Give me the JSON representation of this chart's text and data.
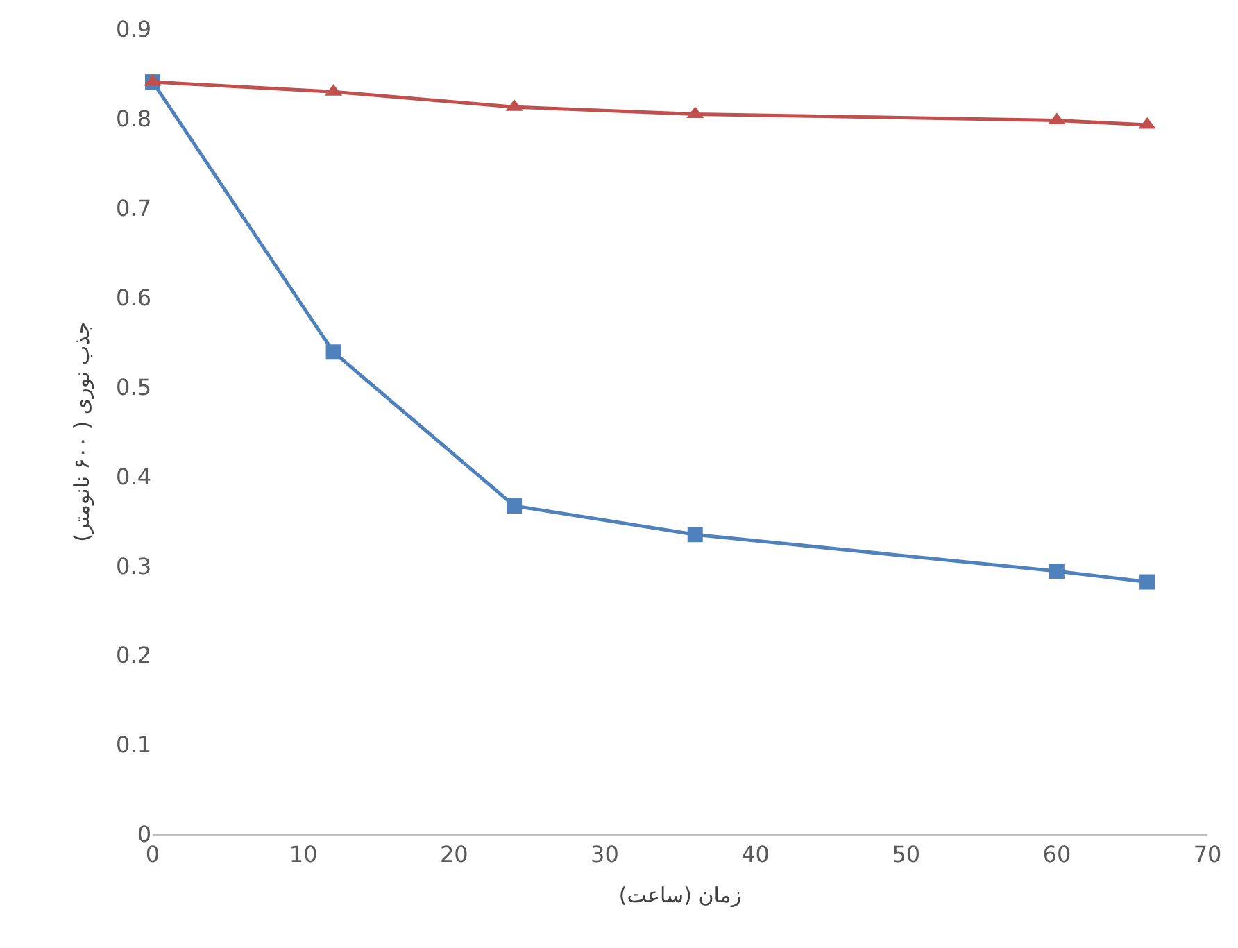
{
  "chart_data": {
    "type": "line",
    "xlabel": "زمان (ساعت)",
    "ylabel": "جذب نوری ( ۶۰۰ نانومتر)",
    "x": [
      0,
      12,
      24,
      36,
      60,
      66
    ],
    "series": [
      {
        "color": "#4f81bd",
        "marker": "square",
        "values": [
          0.841,
          0.539,
          0.367,
          0.335,
          0.294,
          0.282
        ]
      },
      {
        "color": "#c0504d",
        "marker": "triangle",
        "values": [
          0.841,
          0.83,
          0.813,
          0.805,
          0.798,
          0.793
        ]
      }
    ],
    "xlim": [
      0,
      70
    ],
    "xticks": [
      0,
      10,
      20,
      30,
      40,
      50,
      60,
      70
    ],
    "ylim": [
      0,
      0.9
    ],
    "yticks": [
      0,
      0.1,
      0.2,
      0.3,
      0.4,
      0.5,
      0.6,
      0.7,
      0.8,
      0.9
    ],
    "grid": false,
    "legend": false
  }
}
